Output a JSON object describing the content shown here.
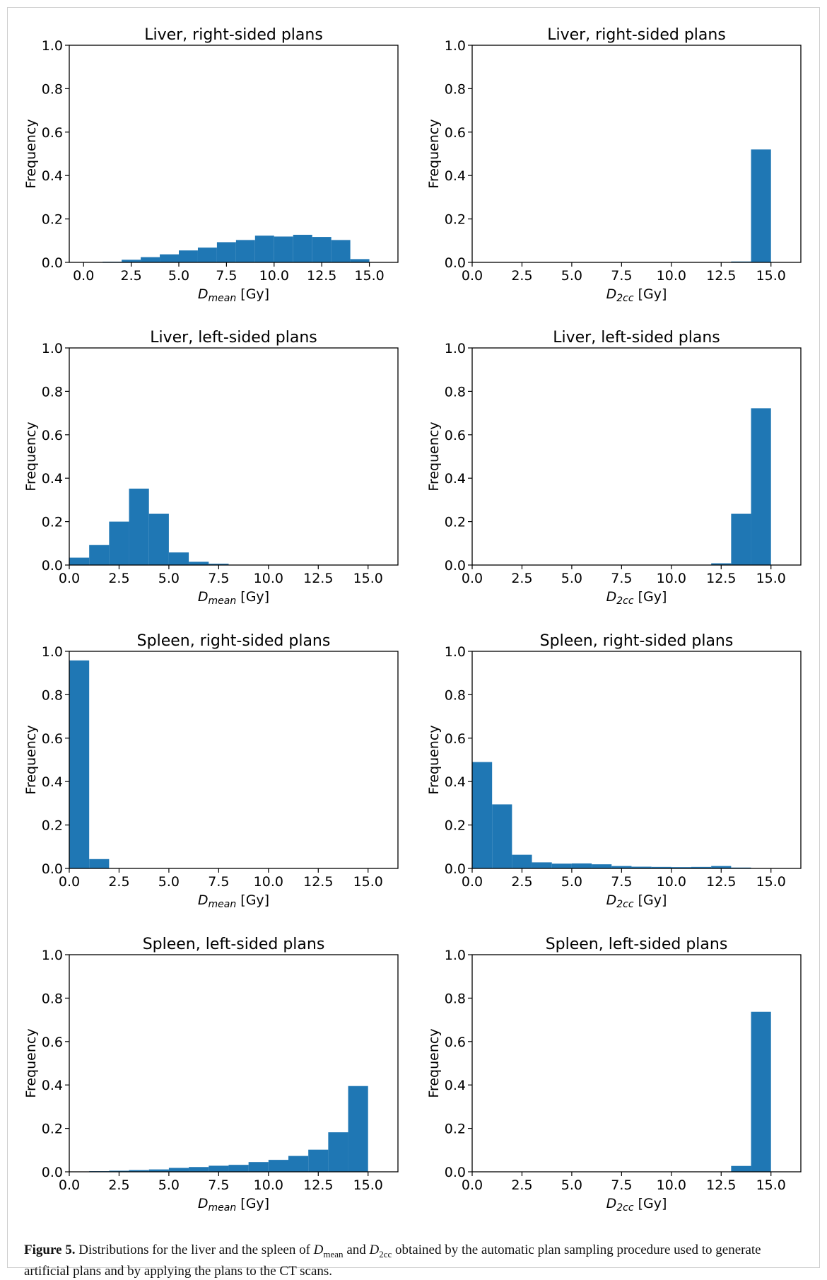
{
  "figure": {
    "caption": {
      "label": "Figure 5.",
      "part1": " Distributions for the liver and the spleen of ",
      "dmean_sym": "D",
      "dmean_sub": "mean",
      "part2": " and ",
      "d2cc_sym": "D",
      "d2cc_sub": "2cc",
      "part3": " obtained by the automatic plan sampling procedure used to generate artificial plans and by applying the plans to the CT scans."
    }
  },
  "colors": {
    "bar": "#1f77b4",
    "axes": "#000000"
  },
  "chart_data": [
    {
      "type": "bar",
      "title": "Liver, right-sided plans",
      "ylabel": "Frequency",
      "xlabel_sym": "D",
      "xlabel_sub": "mean",
      "xlabel_unit": " [Gy]",
      "xlim": [
        -0.75,
        16.5
      ],
      "ylim": [
        0,
        1
      ],
      "xticks": [
        "0.0",
        "2.5",
        "5.0",
        "7.5",
        "10.0",
        "12.5",
        "15.0"
      ],
      "yticks": [
        "0.0",
        "0.2",
        "0.4",
        "0.6",
        "0.8",
        "1.0"
      ],
      "bin_start": 0,
      "bin_width": 1,
      "values": [
        0.0,
        0.003,
        0.012,
        0.024,
        0.037,
        0.055,
        0.068,
        0.093,
        0.103,
        0.123,
        0.119,
        0.127,
        0.117,
        0.103,
        0.015
      ]
    },
    {
      "type": "bar",
      "title": "Liver, right-sided plans",
      "ylabel": "Frequency",
      "xlabel_sym": "D",
      "xlabel_sub": "2cc",
      "xlabel_unit": " [Gy]",
      "xlim": [
        0,
        16.5
      ],
      "ylim": [
        0,
        1
      ],
      "xticks": [
        "0.0",
        "2.5",
        "5.0",
        "7.5",
        "10.0",
        "12.5",
        "15.0"
      ],
      "yticks": [
        "0.0",
        "0.2",
        "0.4",
        "0.6",
        "0.8",
        "1.0"
      ],
      "bin_start": 0,
      "bin_width": 1,
      "values": [
        0,
        0,
        0,
        0,
        0,
        0,
        0,
        0,
        0,
        0,
        0,
        0,
        0,
        0.004,
        0.52
      ]
    },
    {
      "type": "bar",
      "title": "Liver, left-sided plans",
      "ylabel": "Frequency",
      "xlabel_sym": "D",
      "xlabel_sub": "mean",
      "xlabel_unit": " [Gy]",
      "xlim": [
        0,
        16.5
      ],
      "ylim": [
        0,
        1
      ],
      "xticks": [
        "0.0",
        "2.5",
        "5.0",
        "7.5",
        "10.0",
        "12.5",
        "15.0"
      ],
      "yticks": [
        "0.0",
        "0.2",
        "0.4",
        "0.6",
        "0.8",
        "1.0"
      ],
      "bin_start": 0,
      "bin_width": 1,
      "values": [
        0.034,
        0.092,
        0.2,
        0.352,
        0.236,
        0.058,
        0.015,
        0.006
      ]
    },
    {
      "type": "bar",
      "title": "Liver, left-sided plans",
      "ylabel": "Frequency",
      "xlabel_sym": "D",
      "xlabel_sub": "2cc",
      "xlabel_unit": " [Gy]",
      "xlim": [
        0,
        16.5
      ],
      "ylim": [
        0,
        1
      ],
      "xticks": [
        "0.0",
        "2.5",
        "5.0",
        "7.5",
        "10.0",
        "12.5",
        "15.0"
      ],
      "yticks": [
        "0.0",
        "0.2",
        "0.4",
        "0.6",
        "0.8",
        "1.0"
      ],
      "bin_start": 0,
      "bin_width": 1,
      "values": [
        0,
        0,
        0,
        0,
        0,
        0,
        0,
        0,
        0,
        0,
        0,
        0,
        0.008,
        0.236,
        0.722
      ]
    },
    {
      "type": "bar",
      "title": "Spleen, right-sided plans",
      "ylabel": "Frequency",
      "xlabel_sym": "D",
      "xlabel_sub": "mean",
      "xlabel_unit": " [Gy]",
      "xlim": [
        0,
        16.5
      ],
      "ylim": [
        0,
        1
      ],
      "xticks": [
        "0.0",
        "2.5",
        "5.0",
        "7.5",
        "10.0",
        "12.5",
        "15.0"
      ],
      "yticks": [
        "0.0",
        "0.2",
        "0.4",
        "0.6",
        "0.8",
        "1.0"
      ],
      "bin_start": 0,
      "bin_width": 1,
      "values": [
        0.958,
        0.043
      ]
    },
    {
      "type": "bar",
      "title": "Spleen, right-sided plans",
      "ylabel": "Frequency",
      "xlabel_sym": "D",
      "xlabel_sub": "2cc",
      "xlabel_unit": " [Gy]",
      "xlim": [
        0,
        16.5
      ],
      "ylim": [
        0,
        1
      ],
      "xticks": [
        "0.0",
        "2.5",
        "5.0",
        "7.5",
        "10.0",
        "12.5",
        "15.0"
      ],
      "yticks": [
        "0.0",
        "0.2",
        "0.4",
        "0.6",
        "0.8",
        "1.0"
      ],
      "bin_start": 0,
      "bin_width": 1,
      "values": [
        0.49,
        0.295,
        0.063,
        0.028,
        0.022,
        0.023,
        0.019,
        0.011,
        0.008,
        0.007,
        0.006,
        0.007,
        0.011,
        0.004
      ]
    },
    {
      "type": "bar",
      "title": "Spleen, left-sided plans",
      "ylabel": "Frequency",
      "xlabel_sym": "D",
      "xlabel_sub": "mean",
      "xlabel_unit": " [Gy]",
      "xlim": [
        0,
        16.5
      ],
      "ylim": [
        0,
        1
      ],
      "xticks": [
        "0.0",
        "2.5",
        "5.0",
        "7.5",
        "10.0",
        "12.5",
        "15.0"
      ],
      "yticks": [
        "0.0",
        "0.2",
        "0.4",
        "0.6",
        "0.8",
        "1.0"
      ],
      "bin_start": 0,
      "bin_width": 1,
      "values": [
        0.0,
        0.003,
        0.005,
        0.008,
        0.011,
        0.018,
        0.022,
        0.028,
        0.032,
        0.045,
        0.055,
        0.073,
        0.102,
        0.182,
        0.395
      ]
    },
    {
      "type": "bar",
      "title": "Spleen, left-sided plans",
      "ylabel": "Frequency",
      "xlabel_sym": "D",
      "xlabel_sub": "2cc",
      "xlabel_unit": " [Gy]",
      "xlim": [
        0,
        16.5
      ],
      "ylim": [
        0,
        1
      ],
      "xticks": [
        "0.0",
        "2.5",
        "5.0",
        "7.5",
        "10.0",
        "12.5",
        "15.0"
      ],
      "yticks": [
        "0.0",
        "0.2",
        "0.4",
        "0.6",
        "0.8",
        "1.0"
      ],
      "bin_start": 0,
      "bin_width": 1,
      "values": [
        0,
        0,
        0,
        0,
        0,
        0,
        0,
        0,
        0,
        0,
        0,
        0,
        0,
        0.027,
        0.737
      ]
    }
  ]
}
